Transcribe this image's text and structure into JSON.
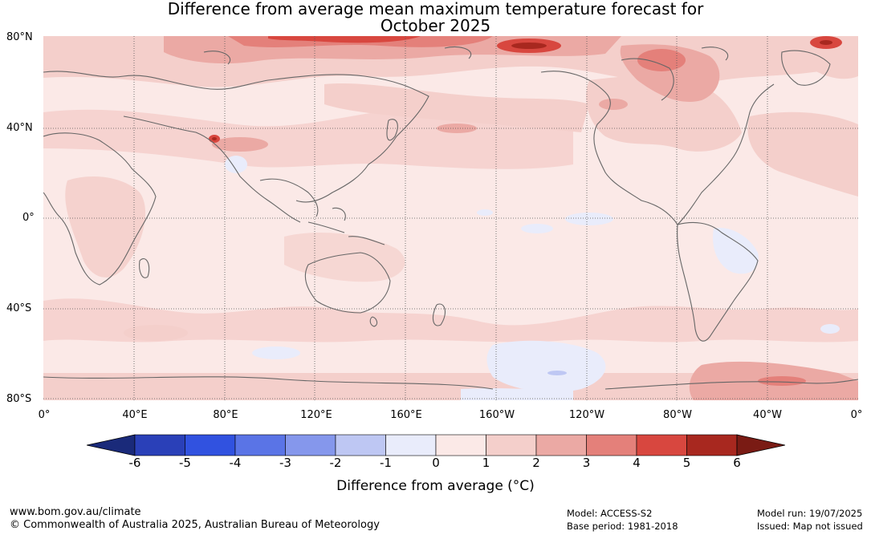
{
  "title": {
    "line1": "Difference from average mean maximum temperature forecast for",
    "line2": "October 2025"
  },
  "lat_labels": [
    "80°N",
    "40°N",
    "0°",
    "40°S",
    "80°S"
  ],
  "lon_labels": [
    "0°",
    "40°E",
    "80°E",
    "120°E",
    "160°E",
    "160°W",
    "120°W",
    "80°W",
    "40°W",
    "0°"
  ],
  "colorbar": {
    "ticks": [
      "-6",
      "-5",
      "-4",
      "-3",
      "-2",
      "-1",
      "0",
      "1",
      "2",
      "3",
      "4",
      "5",
      "6"
    ],
    "colors": [
      "#1a2a7a",
      "#2a40b8",
      "#3152e0",
      "#5a74e6",
      "#8597ec",
      "#bec7f3",
      "#e9ecfb",
      "#fbe9e7",
      "#f4cfcb",
      "#eba9a4",
      "#e4807a",
      "#d8473f",
      "#a8281f",
      "#7a1b14"
    ],
    "label": "Difference from average (°C)"
  },
  "footer": {
    "website": "www.bom.gov.au/climate",
    "copyright": "© Commonwealth of Australia 2025, Australian Bureau of Meteorology",
    "model": "Model: ACCESS-S2",
    "base_period": "Base period: 1981-2018",
    "model_run": "Model run: 19/07/2025",
    "issued": "Issued: Map not issued"
  }
}
